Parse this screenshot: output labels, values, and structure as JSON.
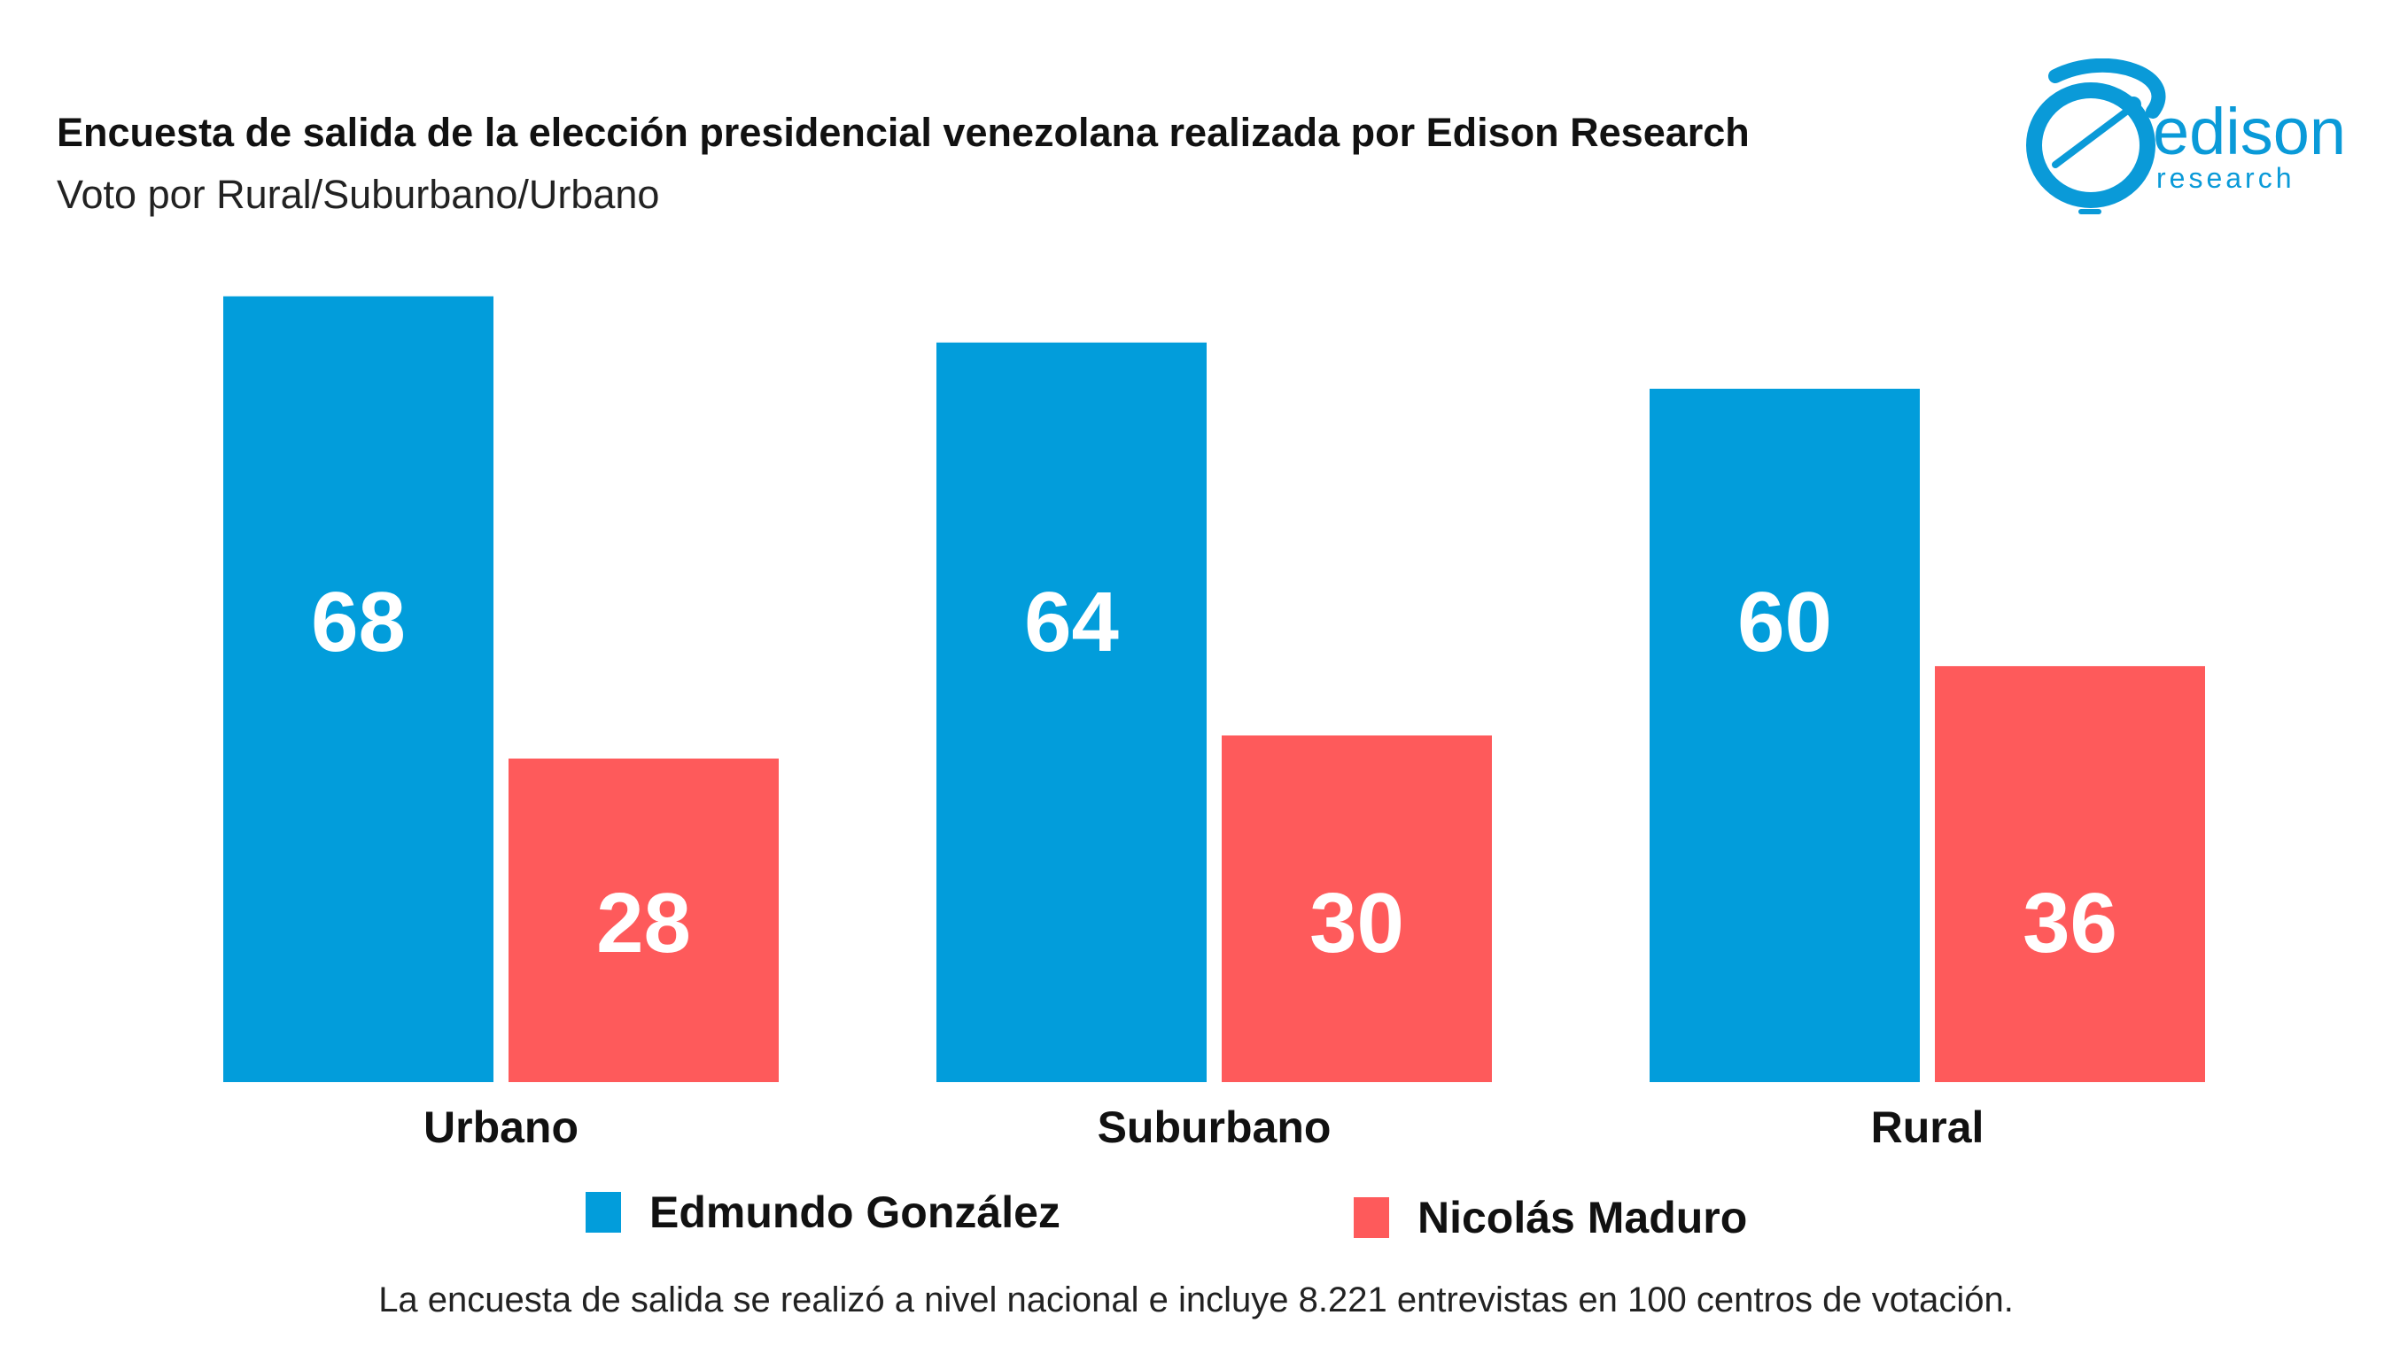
{
  "header": {
    "title": "Encuesta de salida de la elección presidencial venezolana realizada por Edison Research",
    "subtitle": "Voto por Rural/Suburbano/Urbano"
  },
  "logo": {
    "name": "edison",
    "tagline": "research",
    "color": "#0a9ad8"
  },
  "chart_data": {
    "type": "bar",
    "categories": [
      "Urbano",
      "Suburbano",
      "Rural"
    ],
    "series": [
      {
        "name": "Edmundo González",
        "values": [
          68,
          64,
          60
        ],
        "color": "#029ddb"
      },
      {
        "name": "Nicolás Maduro",
        "values": [
          28,
          30,
          36
        ],
        "color": "#fe5a5b"
      }
    ],
    "data_labels": true,
    "legend_position": "bottom",
    "grid": false
  },
  "footnote": "La encuesta de salida se realizó a nivel nacional e incluye 8.221 entrevistas en 100 centros de votación."
}
